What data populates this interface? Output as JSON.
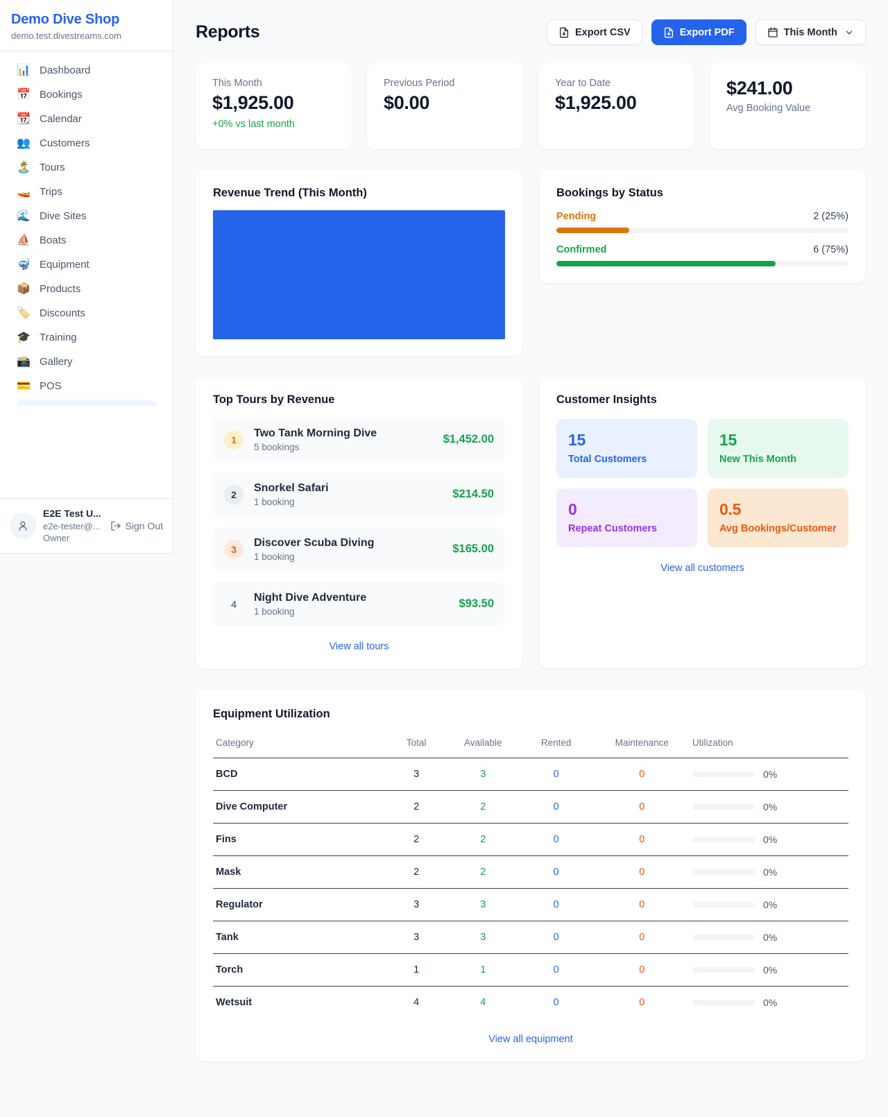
{
  "colors": {
    "accent_blue": "#2563eb",
    "green": "#16a34a",
    "pending_orange": "#d97706",
    "deep_orange": "#ea580c",
    "purple": "#9333ea",
    "chart_blue": "#2563eb"
  },
  "sidebar": {
    "brand": {
      "name": "Demo Dive Shop",
      "domain": "demo.test.divestreams.com"
    },
    "items": [
      {
        "glyph": "📊",
        "label": "Dashboard"
      },
      {
        "glyph": "📅",
        "label": "Bookings"
      },
      {
        "glyph": "📆",
        "label": "Calendar"
      },
      {
        "glyph": "👥",
        "label": "Customers"
      },
      {
        "glyph": "🏝️",
        "label": "Tours"
      },
      {
        "glyph": "🚤",
        "label": "Trips"
      },
      {
        "glyph": "🌊",
        "label": "Dive Sites"
      },
      {
        "glyph": "⛵",
        "label": "Boats"
      },
      {
        "glyph": "🤿",
        "label": "Equipment"
      },
      {
        "glyph": "📦",
        "label": "Products"
      },
      {
        "glyph": "🏷️",
        "label": "Discounts"
      },
      {
        "glyph": "🎓",
        "label": "Training"
      },
      {
        "glyph": "📸",
        "label": "Gallery"
      },
      {
        "glyph": "💳",
        "label": "POS"
      }
    ],
    "user": {
      "name": "E2E Test U...",
      "email": "e2e-tester@...",
      "role": "Owner",
      "signout_label": "Sign Out"
    }
  },
  "header": {
    "title": "Reports",
    "export_csv_label": "Export CSV",
    "export_pdf_label": "Export PDF",
    "period_label": "This Month"
  },
  "stats": [
    {
      "label": "This Month",
      "value": "$1,925.00",
      "note": "+0% vs last month"
    },
    {
      "label": "Previous Period",
      "value": "$0.00"
    },
    {
      "label": "Year to Date",
      "value": "$1,925.00"
    },
    {
      "label": "Avg Booking Value",
      "value": "$241.00"
    }
  ],
  "revenue_trend": {
    "title": "Revenue Trend (This Month)"
  },
  "chart_data": {
    "type": "bar",
    "title": "Revenue Trend (This Month)",
    "categories": [
      "This Month"
    ],
    "values": [
      1925
    ],
    "bar_color": "#2563eb",
    "xlabel": "",
    "ylabel": "",
    "notes": "Single full-width solid bar, no axes, gridlines or labels visible"
  },
  "bookings_status": {
    "title": "Bookings by Status",
    "rows": [
      {
        "label": "Pending",
        "count_text": "2 (25%)",
        "pct": 25,
        "color": "#d97706"
      },
      {
        "label": "Confirmed",
        "count_text": "6 (75%)",
        "pct": 75,
        "color": "#16a34a"
      }
    ]
  },
  "top_tours": {
    "title": "Top Tours by Revenue",
    "rows": [
      {
        "rank": "1",
        "name": "Two Tank Morning Dive",
        "bookings": "5 bookings",
        "revenue": "$1,452.00"
      },
      {
        "rank": "2",
        "name": "Snorkel Safari",
        "bookings": "1 booking",
        "revenue": "$214.50"
      },
      {
        "rank": "3",
        "name": "Discover Scuba Diving",
        "bookings": "1 booking",
        "revenue": "$165.00"
      },
      {
        "rank": "4",
        "name": "Night Dive Adventure",
        "bookings": "1 booking",
        "revenue": "$93.50"
      }
    ],
    "link": "View all tours"
  },
  "customer_insights": {
    "title": "Customer Insights",
    "tiles": [
      {
        "value": "15",
        "label": "Total Customers"
      },
      {
        "value": "15",
        "label": "New This Month"
      },
      {
        "value": "0",
        "label": "Repeat Customers"
      },
      {
        "value": "0.5",
        "label": "Avg Bookings/Customer"
      }
    ],
    "link": "View all customers"
  },
  "equipment": {
    "title": "Equipment Utilization",
    "headers": [
      "Category",
      "Total",
      "Available",
      "Rented",
      "Maintenance",
      "Utilization"
    ],
    "rows": [
      {
        "category": "BCD",
        "total": "3",
        "available": "3",
        "rented": "0",
        "maintenance": "0",
        "utilization": "0%"
      },
      {
        "category": "Dive Computer",
        "total": "2",
        "available": "2",
        "rented": "0",
        "maintenance": "0",
        "utilization": "0%"
      },
      {
        "category": "Fins",
        "total": "2",
        "available": "2",
        "rented": "0",
        "maintenance": "0",
        "utilization": "0%"
      },
      {
        "category": "Mask",
        "total": "2",
        "available": "2",
        "rented": "0",
        "maintenance": "0",
        "utilization": "0%"
      },
      {
        "category": "Regulator",
        "total": "3",
        "available": "3",
        "rented": "0",
        "maintenance": "0",
        "utilization": "0%"
      },
      {
        "category": "Tank",
        "total": "3",
        "available": "3",
        "rented": "0",
        "maintenance": "0",
        "utilization": "0%"
      },
      {
        "category": "Torch",
        "total": "1",
        "available": "1",
        "rented": "0",
        "maintenance": "0",
        "utilization": "0%"
      },
      {
        "category": "Wetsuit",
        "total": "4",
        "available": "4",
        "rented": "0",
        "maintenance": "0",
        "utilization": "0%"
      }
    ],
    "link": "View all equipment"
  }
}
